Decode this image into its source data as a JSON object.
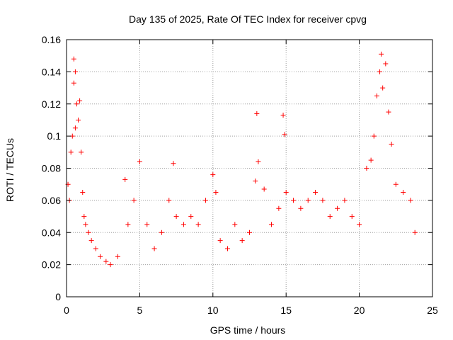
{
  "chart_data": {
    "type": "scatter",
    "title": "Day 135 of 2025, Rate Of TEC Index for receiver cpvg",
    "xlabel": "GPS time / hours",
    "ylabel": "ROTI / TECUs",
    "xlim": [
      0,
      25
    ],
    "ylim": [
      0,
      0.16
    ],
    "xticks": [
      0,
      5,
      10,
      15,
      20,
      25
    ],
    "xtick_labels": [
      "0",
      "5",
      "10",
      "15",
      "20",
      "25"
    ],
    "yticks": [
      0,
      0.02,
      0.04,
      0.06,
      0.08,
      0.1,
      0.12,
      0.14,
      0.16
    ],
    "ytick_labels": [
      "0",
      "0.02",
      "0.04",
      "0.06",
      "0.08",
      "0.1",
      "0.12",
      "0.14",
      "0.16"
    ],
    "grid": true,
    "marker": "+",
    "series": [
      {
        "color": "#ff0000",
        "x": [
          0.1,
          0.2,
          0.3,
          0.4,
          0.5,
          0.5,
          0.6,
          0.6,
          0.7,
          0.8,
          0.9,
          1.0,
          1.1,
          1.2,
          1.3,
          1.5,
          1.7,
          2.0,
          2.3,
          2.7,
          3.0,
          3.5,
          4.0,
          4.2,
          4.6,
          5.0,
          5.5,
          6.0,
          6.5,
          7.0,
          7.3,
          7.5,
          8.0,
          8.5,
          9.0,
          9.5,
          10.0,
          10.2,
          10.5,
          11.0,
          11.5,
          12.0,
          12.5,
          12.9,
          13.0,
          13.1,
          13.5,
          14.0,
          14.5,
          14.8,
          14.9,
          15.0,
          15.5,
          16.0,
          16.5,
          17.0,
          17.5,
          18.0,
          18.5,
          19.0,
          19.5,
          20.0,
          20.5,
          20.8,
          21.0,
          21.2,
          21.4,
          21.5,
          21.6,
          21.8,
          22.0,
          22.2,
          22.5,
          23.0,
          23.5,
          23.8
        ],
        "y": [
          0.07,
          0.06,
          0.09,
          0.1,
          0.148,
          0.133,
          0.105,
          0.14,
          0.12,
          0.11,
          0.122,
          0.09,
          0.065,
          0.05,
          0.045,
          0.04,
          0.035,
          0.03,
          0.025,
          0.022,
          0.02,
          0.025,
          0.073,
          0.045,
          0.06,
          0.084,
          0.045,
          0.03,
          0.04,
          0.06,
          0.083,
          0.05,
          0.045,
          0.05,
          0.045,
          0.06,
          0.076,
          0.065,
          0.035,
          0.03,
          0.045,
          0.035,
          0.04,
          0.072,
          0.114,
          0.084,
          0.067,
          0.045,
          0.055,
          0.113,
          0.101,
          0.065,
          0.06,
          0.055,
          0.06,
          0.065,
          0.06,
          0.05,
          0.055,
          0.06,
          0.05,
          0.045,
          0.08,
          0.085,
          0.1,
          0.125,
          0.14,
          0.151,
          0.13,
          0.145,
          0.115,
          0.095,
          0.07,
          0.065,
          0.06,
          0.04
        ]
      }
    ]
  }
}
